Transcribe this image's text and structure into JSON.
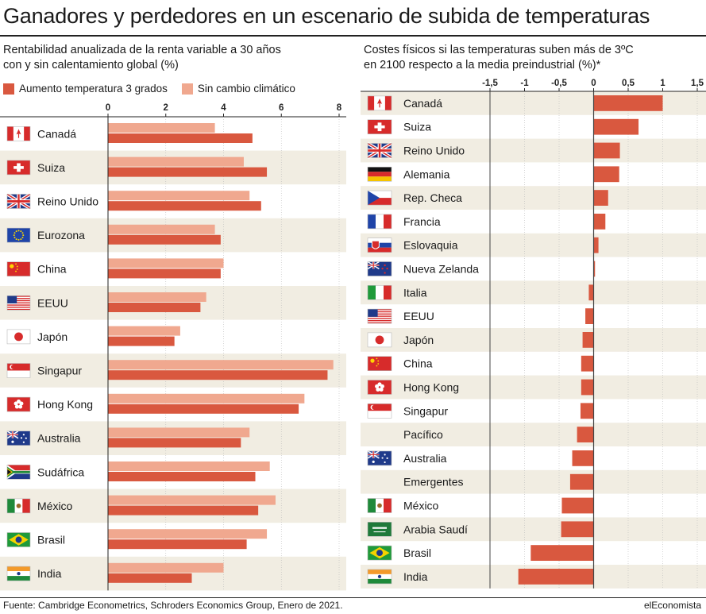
{
  "title": "Ganadores y perdedores en un escenario de subida de temperaturas",
  "source": "Fuente: Cambridge Econometrics, Schroders Economics Group, Enero de 2021.",
  "brand": "elEconomista",
  "colors": {
    "warm": "#d9583f",
    "base": "#f0a88f",
    "band": "#f1ede2",
    "zero": "#444444"
  },
  "chart_data": [
    {
      "type": "bar",
      "orientation": "horizontal",
      "title": "Rentabilidad anualizada de la renta variable a 30 años\ncon y sin calentamiento global (%)",
      "xlim": [
        0,
        8
      ],
      "xticks": [
        "0",
        "2",
        "4",
        "6",
        "8"
      ],
      "xtick_values": [
        0,
        2,
        4,
        6,
        8
      ],
      "legend_position": "top-left",
      "categories": [
        "Canadá",
        "Suiza",
        "Reino Unido",
        "Eurozona",
        "China",
        "EEUU",
        "Japón",
        "Singapur",
        "Hong Kong",
        "Australia",
        "Sudáfrica",
        "México",
        "Brasil",
        "India"
      ],
      "flags": [
        "canada",
        "switzerland",
        "uk",
        "eu",
        "china",
        "usa",
        "japan",
        "singapore",
        "hongkong",
        "australia",
        "southafrica",
        "mexico",
        "brazil",
        "india"
      ],
      "series": [
        {
          "name": "Sin cambio climático",
          "color": "#f0a88f",
          "values": [
            3.7,
            4.7,
            4.9,
            3.7,
            4.0,
            3.4,
            2.5,
            7.8,
            6.8,
            4.9,
            5.6,
            5.8,
            5.5,
            4.0
          ]
        },
        {
          "name": "Aumento temperatura 3 grados",
          "color": "#d9583f",
          "values": [
            5.0,
            5.5,
            5.3,
            3.9,
            3.9,
            3.2,
            2.3,
            7.6,
            6.6,
            4.6,
            5.1,
            5.2,
            4.8,
            2.9
          ]
        }
      ]
    },
    {
      "type": "bar",
      "orientation": "horizontal",
      "title": "Costes físicos si las temperaturas suben más de 3ºC\nen 2100 respecto a la media preindustrial (%)*",
      "xlim": [
        -1.5,
        1.5
      ],
      "xticks": [
        "-1,5",
        "-1",
        "-0,5",
        "0",
        "0,5",
        "1",
        "1,5"
      ],
      "xtick_values": [
        -1.5,
        -1,
        -0.5,
        0,
        0.5,
        1,
        1.5
      ],
      "categories": [
        "Canadá",
        "Suiza",
        "Reino Unido",
        "Alemania",
        "Rep. Checa",
        "Francia",
        "Eslovaquia",
        "Nueva Zelanda",
        "Italia",
        "EEUU",
        "Japón",
        "China",
        "Hong Kong",
        "Singapur",
        "Pacífico",
        "Australia",
        "Emergentes",
        "México",
        "Arabia Saudí",
        "Brasil",
        "India"
      ],
      "flags": [
        "canada",
        "switzerland",
        "uk",
        "germany",
        "czech",
        "france",
        "slovakia",
        "newzealand",
        "italy",
        "usa",
        "japan",
        "china",
        "hongkong",
        "singapore",
        "",
        "australia",
        "",
        "mexico",
        "saudi",
        "brazil",
        "india"
      ],
      "series": [
        {
          "color": "#d9583f",
          "values": [
            1.0,
            0.65,
            0.38,
            0.37,
            0.21,
            0.17,
            0.07,
            0.02,
            -0.07,
            -0.12,
            -0.16,
            -0.18,
            -0.18,
            -0.19,
            -0.24,
            -0.31,
            -0.34,
            -0.46,
            -0.47,
            -0.91,
            -1.09
          ]
        }
      ]
    }
  ]
}
